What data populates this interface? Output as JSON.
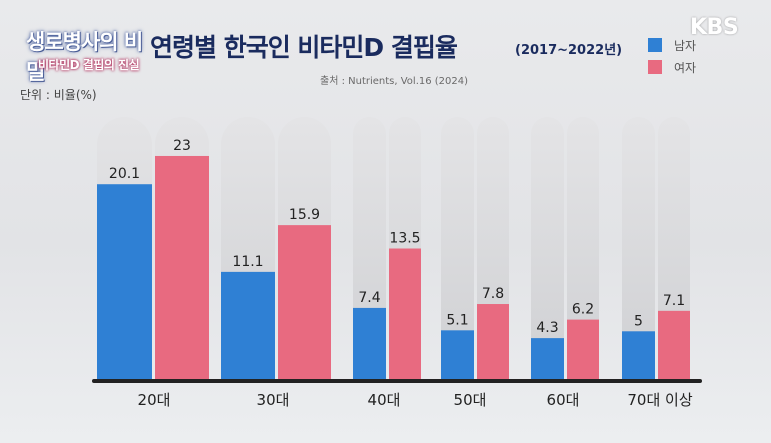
{
  "overlay": {
    "show_title_line1": "생로병사의 비밀",
    "show_title_line2": "비타민D 결핍의 진실",
    "broadcaster": "KBS"
  },
  "colors": {
    "male": "#2f80d4",
    "female": "#e86a80",
    "track": "#d6d6d6",
    "title": "#1a2b5e"
  },
  "chart_data": {
    "type": "bar",
    "title": "연령별 한국인 비타민D 결핍율",
    "subtitle": "(2017~2022년)",
    "source": "출처 : Nutrients, Vol.16 (2024)",
    "ylabel": "단위 : 비율(%)",
    "categories": [
      "20대",
      "30대",
      "40대",
      "50대",
      "60대",
      "70대 이상"
    ],
    "series": [
      {
        "name": "남자",
        "values": [
          20.1,
          11.1,
          7.4,
          5.1,
          4.3,
          5
        ]
      },
      {
        "name": "여자",
        "values": [
          23,
          15.9,
          13.5,
          7.8,
          6.2,
          7.1
        ]
      }
    ],
    "value_labels": {
      "남자": [
        "20.1",
        "11.1",
        "7.4",
        "5.1",
        "4.3",
        "5"
      ],
      "여자": [
        "23",
        "15.9",
        "13.5",
        "7.8",
        "6.2",
        "7.1"
      ]
    },
    "ylim": [
      0,
      27
    ],
    "legend_position": "top-right",
    "grid": false
  }
}
